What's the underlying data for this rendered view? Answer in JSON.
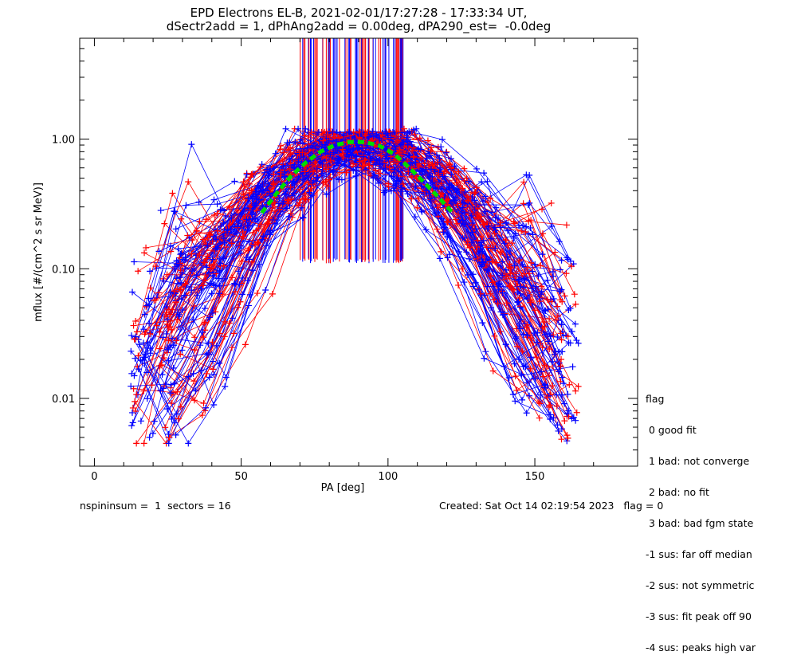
{
  "chart_data": {
    "type": "scatter",
    "title_line1": "EPD Electrons EL-B, 2021-02-01/17:27:28 - 17:33:34 UT,",
    "title_line2": "dSectr2add = 1, dPhAng2add = 0.00deg, dPA290_est=  -0.0deg",
    "xlabel": "PA [deg]",
    "ylabel": "mflux [#/(cm^2 s sr MeV)]",
    "xlim": [
      -5,
      185
    ],
    "ylim": [
      0.003,
      6.0
    ],
    "yscale": "log",
    "x_ticks": [
      0,
      50,
      100,
      150
    ],
    "x_tick_labels": [
      "0",
      "50",
      "100",
      "150"
    ],
    "y_ticks": [
      0.01,
      0.1,
      1.0
    ],
    "y_tick_labels": [
      "0.01",
      "0.10",
      "1.00"
    ],
    "colors": {
      "red_series": "#ff0000",
      "blue_series": "#0000ff",
      "fit_curve": "#00dd00",
      "axes": "#000000"
    },
    "fit_curve": {
      "style": "dashed",
      "x": [
        57,
        62,
        67,
        72,
        77,
        82,
        87,
        92,
        97,
        102,
        107,
        112,
        117,
        122
      ],
      "y": [
        0.27,
        0.38,
        0.52,
        0.66,
        0.8,
        0.9,
        0.95,
        0.95,
        0.89,
        0.77,
        0.61,
        0.47,
        0.36,
        0.27
      ]
    },
    "flux_peak": 0.93,
    "flux_width_deg": 22,
    "flux_floor": 0.006,
    "spike_pa_range": [
      70,
      107
    ],
    "spike_y_range": [
      0.12,
      6.0
    ],
    "grid": false,
    "legend_title": "flag",
    "legend": [
      " 0 good fit",
      " 1 bad: not converge",
      " 2 bad: no fit",
      " 3 bad: bad fgm state",
      "-1 sus: far off median",
      "-2 sus: not symmetric",
      "-3 sus: fit peak off 90",
      "-4 sus: peaks high var"
    ]
  },
  "footer": {
    "left": "nspininsum =  1  sectors = 16",
    "right": "Created: Sat Oct 14 02:19:54 2023   flag = 0"
  }
}
